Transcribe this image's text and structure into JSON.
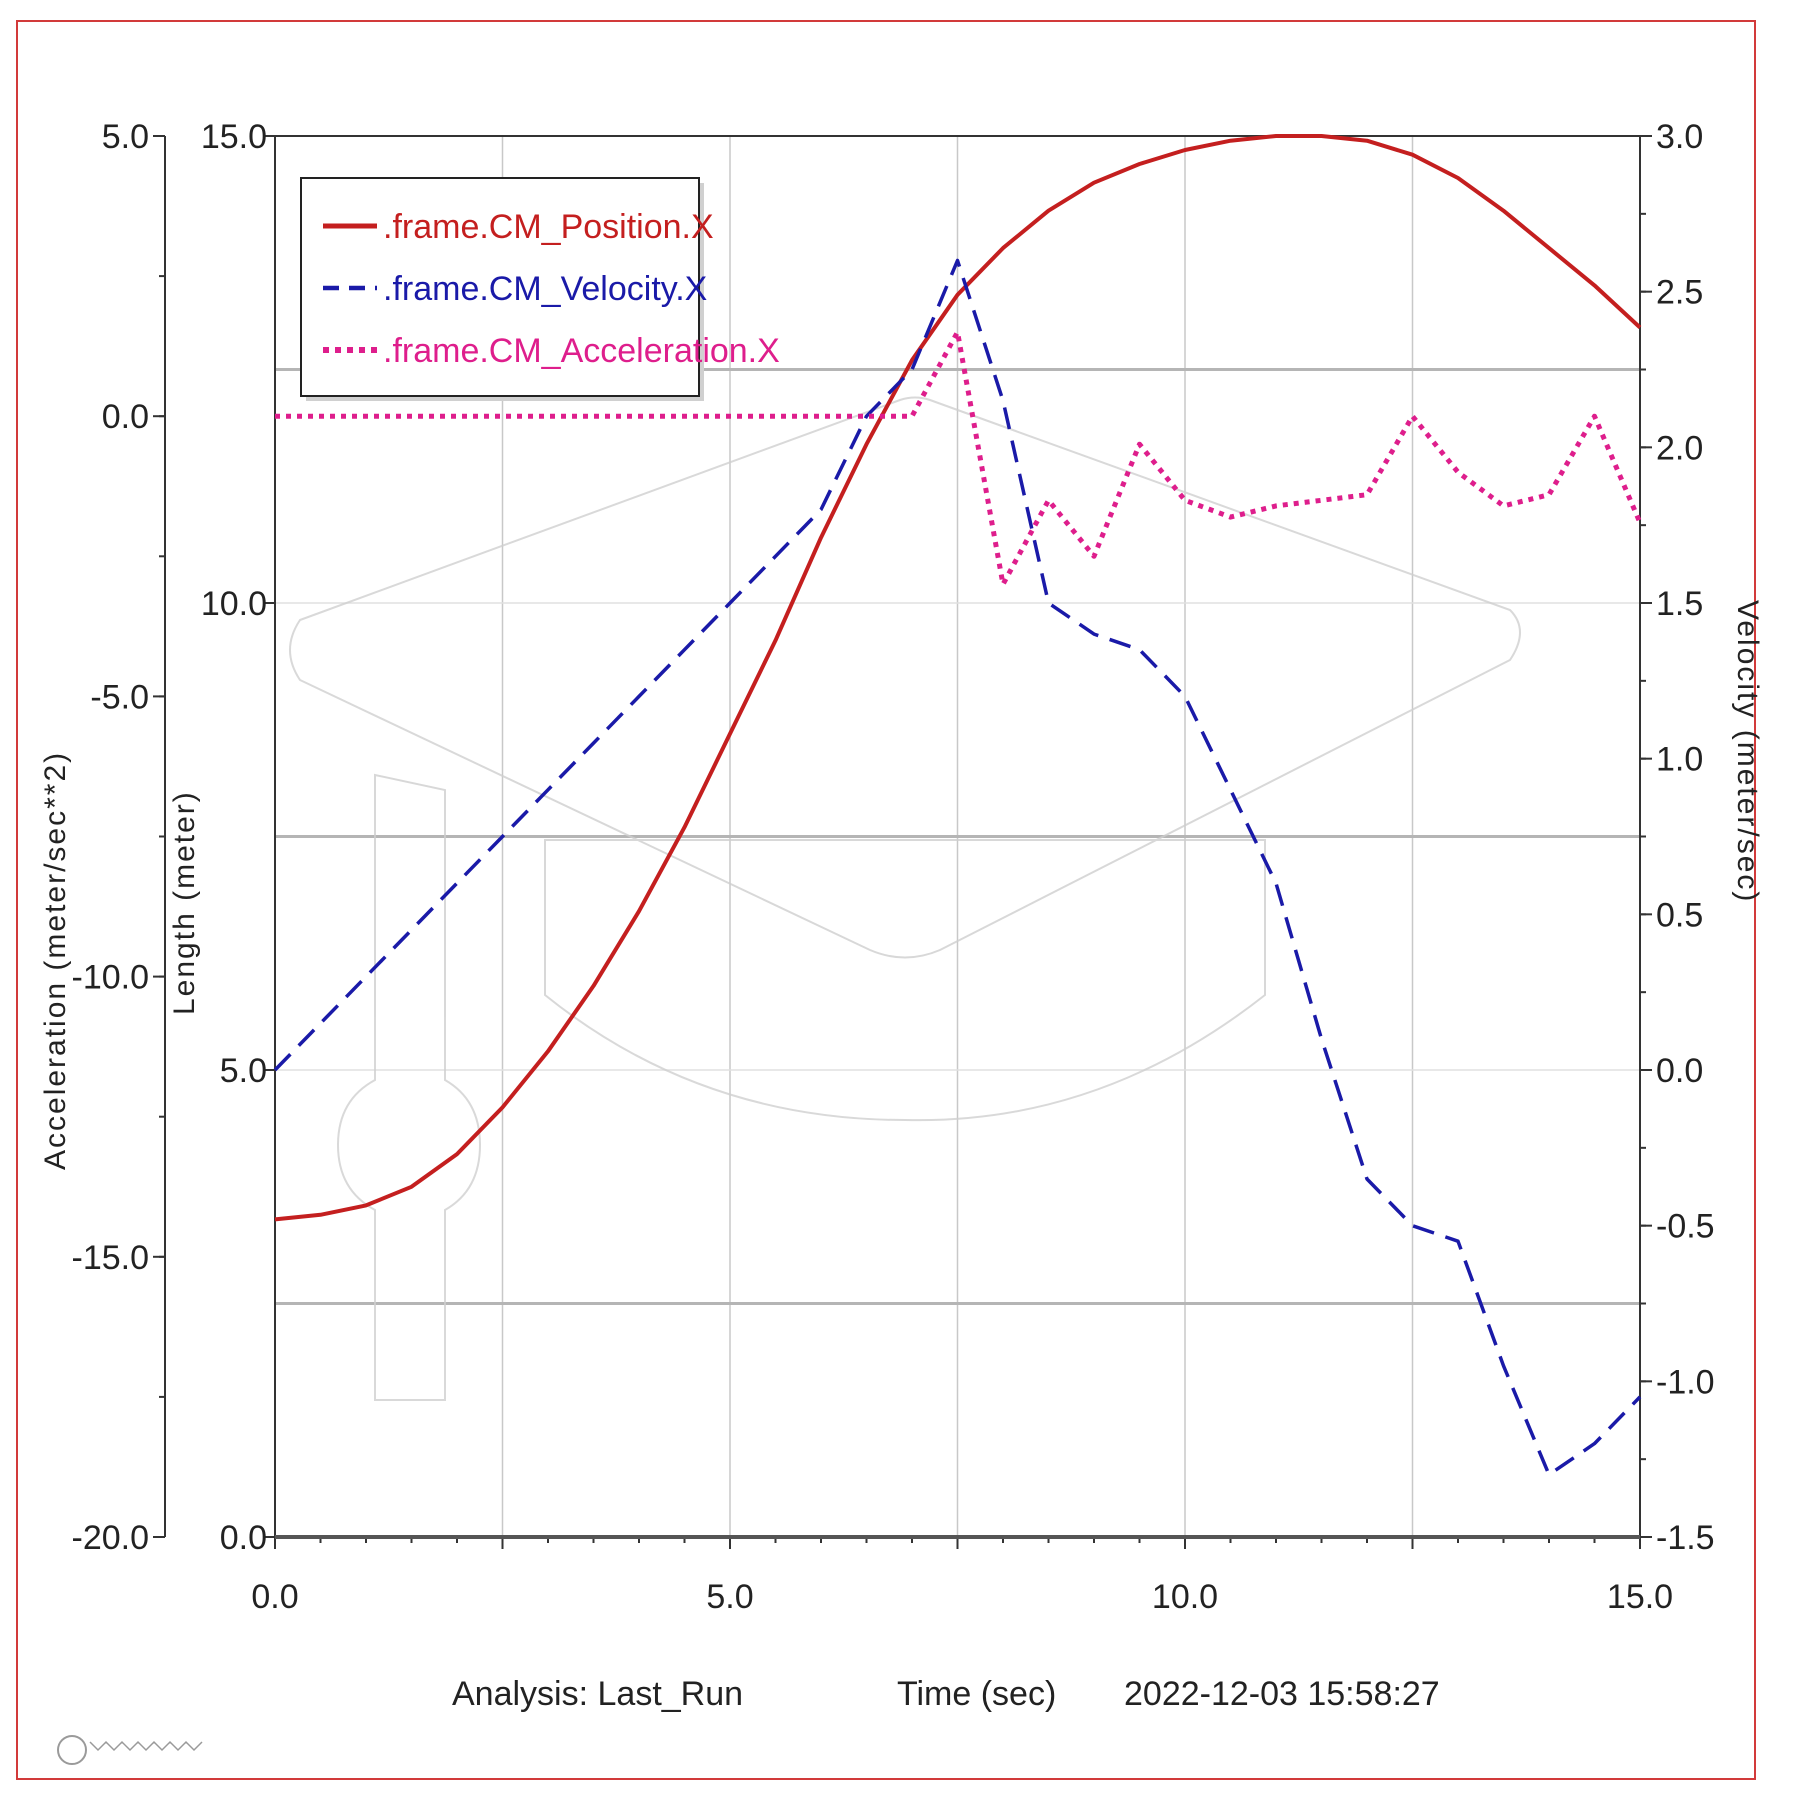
{
  "chart_data": {
    "type": "line",
    "x": [
      0,
      0.5,
      1,
      1.5,
      2,
      2.5,
      3,
      3.5,
      4,
      4.5,
      5,
      5.5,
      6,
      6.5,
      7,
      7.5,
      8,
      8.5,
      9,
      9.5,
      10,
      10.5,
      11,
      11.5,
      12,
      12.5,
      13,
      13.5,
      14,
      14.5,
      15
    ],
    "series": [
      {
        "name": ".frame.CM_Position.X",
        "axis": "length",
        "color": "#c41f1f",
        "style": "solid",
        "values": [
          3.4,
          3.45,
          3.55,
          3.75,
          4.1,
          4.6,
          5.2,
          5.9,
          6.7,
          7.6,
          8.6,
          9.6,
          10.7,
          11.7,
          12.6,
          13.3,
          13.8,
          14.2,
          14.5,
          14.7,
          14.85,
          14.95,
          15.0,
          15.0,
          14.95,
          14.8,
          14.55,
          14.2,
          13.8,
          13.4,
          12.95
        ]
      },
      {
        "name": ".frame.CM_Velocity.X",
        "axis": "velocity",
        "color": "#1a1aa8",
        "style": "dashed",
        "values": [
          0.0,
          0.15,
          0.3,
          0.45,
          0.6,
          0.75,
          0.9,
          1.05,
          1.2,
          1.35,
          1.5,
          1.65,
          1.8,
          2.1,
          2.25,
          2.6,
          2.15,
          1.5,
          1.4,
          1.35,
          1.2,
          0.9,
          0.6,
          0.1,
          -0.35,
          -0.5,
          -0.55,
          -0.95,
          -1.3,
          -1.2,
          -1.05
        ]
      },
      {
        "name": ".frame.CM_Acceleration.X",
        "axis": "acceleration",
        "color": "#de1e8c",
        "style": "dotted",
        "values": [
          0.0,
          0.0,
          0.0,
          0.0,
          0.0,
          0.0,
          0.0,
          0.0,
          0.0,
          0.0,
          0.0,
          0.0,
          0.0,
          0.0,
          0.0,
          1.5,
          -3.0,
          -1.5,
          -2.5,
          -0.5,
          -1.5,
          -1.8,
          -1.6,
          -1.5,
          -1.4,
          0.0,
          -1.0,
          -1.6,
          -1.4,
          0.0,
          -1.9
        ]
      }
    ],
    "axes": {
      "acceleration": {
        "label": "Acceleration (meter/sec**2)",
        "range": [
          -20.0,
          5.0
        ],
        "ticks": [
          "5.0",
          "0.0",
          "-5.0",
          "-10.0",
          "-15.0",
          "-20.0"
        ]
      },
      "length": {
        "label": "Length (meter)",
        "range": [
          0.0,
          15.0
        ],
        "ticks": [
          "15.0",
          "10.0",
          "5.0",
          "0.0"
        ]
      },
      "velocity": {
        "label": "Velocity (meter/sec)",
        "range": [
          -1.5,
          3.0
        ],
        "ticks": [
          "3.0",
          "2.5",
          "2.0",
          "1.5",
          "1.0",
          "0.5",
          "0.0",
          "-0.5",
          "-1.0",
          "-1.5"
        ]
      },
      "time": {
        "label": "Time (sec)",
        "range": [
          0.0,
          15.0
        ],
        "ticks": [
          "0.0",
          "5.0",
          "10.0",
          "15.0"
        ]
      }
    },
    "legend": {
      "position": "top-left"
    },
    "grid": true
  },
  "footer": {
    "analysis": "Analysis:  Last_Run",
    "xlabel": "Time (sec)",
    "timestamp": "2022-12-03 15:58:27"
  },
  "colors": {
    "frame": "#d23a3a",
    "grid": "#c8c8c8",
    "axis": "#333333"
  }
}
